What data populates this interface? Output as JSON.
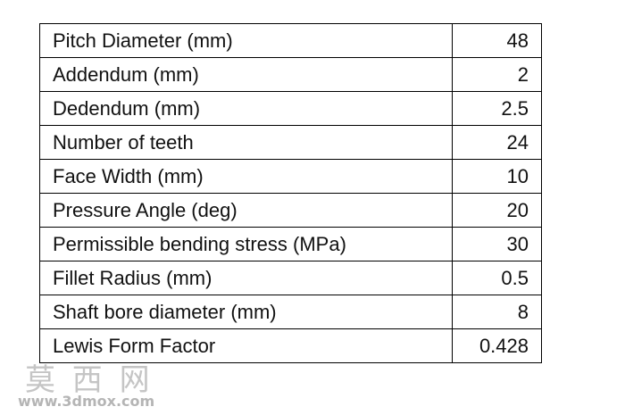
{
  "table": {
    "rows": [
      [
        "Pitch Diameter (mm)",
        "48"
      ],
      [
        "Addendum (mm)",
        "2"
      ],
      [
        "Dedendum (mm)",
        "2.5"
      ],
      [
        "Number of teeth",
        "24"
      ],
      [
        "Face Width (mm)",
        "10"
      ],
      [
        "Pressure Angle (deg)",
        "20"
      ],
      [
        "Permissible bending stress (MPa)",
        "30"
      ],
      [
        "Fillet Radius (mm)",
        "0.5"
      ],
      [
        "Shaft bore diameter (mm)",
        "8"
      ],
      [
        "Lewis Form Factor",
        "0.428"
      ]
    ]
  },
  "watermark": {
    "name": "莫 西 网",
    "url": "www.3dmox.com"
  }
}
